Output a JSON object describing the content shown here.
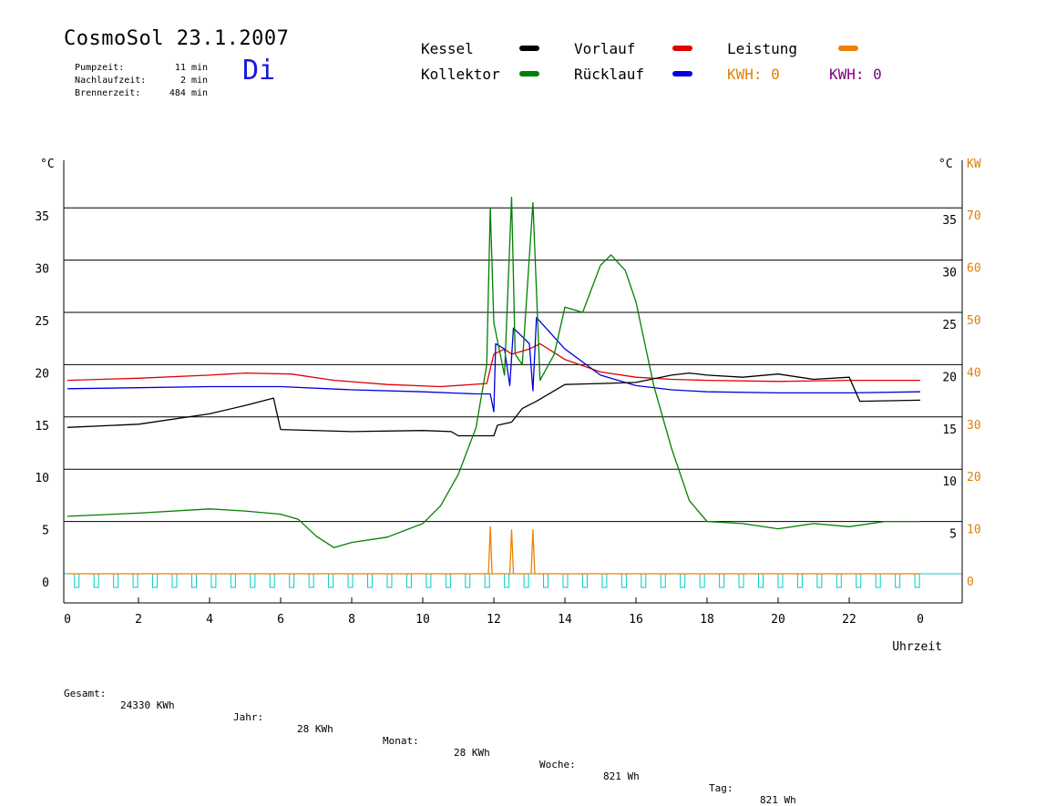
{
  "header": {
    "title": "CosmoSol 23.1.2007",
    "day": "Di",
    "info": [
      {
        "label": "Pumpzeit:",
        "value": "11 min"
      },
      {
        "label": "Nachlaufzeit:",
        "value": "2 min"
      },
      {
        "label": "Brennerzeit:",
        "value": "484 min"
      }
    ]
  },
  "legend": {
    "items": [
      {
        "label": "Kessel",
        "color": "#000000"
      },
      {
        "label": "Vorlauf",
        "color": "#e00000"
      },
      {
        "label": "Leistung",
        "color": "#f08000"
      },
      {
        "label": "Kollektor",
        "color": "#008000"
      },
      {
        "label": "Rücklauf",
        "color": "#0000e0"
      }
    ],
    "kwh": [
      {
        "text": "KWH: 0",
        "color": "#e08000"
      },
      {
        "text": "KWH: 0",
        "color": "#800080"
      }
    ]
  },
  "footer": [
    {
      "label": "Gesamt:",
      "value": "24330 KWh"
    },
    {
      "label": "Jahr:",
      "value": "28 KWh"
    },
    {
      "label": "Monat:",
      "value": "28 KWh"
    },
    {
      "label": "Woche:",
      "value": "821 Wh"
    },
    {
      "label": "Tag:",
      "value": "821 Wh"
    }
  ],
  "chart_data": {
    "type": "line",
    "xlabel": "Uhrzeit",
    "x_ticks": [
      "0",
      "2",
      "4",
      "6",
      "8",
      "10",
      "12",
      "14",
      "16",
      "18",
      "20",
      "22",
      "0"
    ],
    "xlim": [
      0,
      24
    ],
    "ylabel_left": "°C",
    "ylabel_right_units": [
      "°C",
      "KW"
    ],
    "y_ticks_left": [
      0,
      5,
      10,
      15,
      20,
      25,
      30,
      35
    ],
    "y_ticks_right_c": [
      5,
      10,
      15,
      20,
      25,
      30,
      35
    ],
    "y_ticks_right_kw": [
      0,
      10,
      20,
      30,
      40,
      50,
      60,
      70
    ],
    "ylim": [
      -3,
      40
    ],
    "grid": true,
    "series": [
      {
        "name": "Vorlauf",
        "color": "#e00000",
        "points": [
          [
            0,
            18.5
          ],
          [
            2,
            18.7
          ],
          [
            4,
            19.0
          ],
          [
            5,
            19.2
          ],
          [
            6.3,
            19.1
          ],
          [
            7.5,
            18.5
          ],
          [
            9,
            18.1
          ],
          [
            10.5,
            17.9
          ],
          [
            11.8,
            18.2
          ],
          [
            12.0,
            21.0
          ],
          [
            12.3,
            21.5
          ],
          [
            12.5,
            21.0
          ],
          [
            13.0,
            21.5
          ],
          [
            13.3,
            22.0
          ],
          [
            14,
            20.5
          ],
          [
            15,
            19.3
          ],
          [
            16,
            18.8
          ],
          [
            17,
            18.6
          ],
          [
            18,
            18.5
          ],
          [
            20,
            18.4
          ],
          [
            22,
            18.5
          ],
          [
            24,
            18.5
          ]
        ]
      },
      {
        "name": "Rücklauf",
        "color": "#0000e0",
        "points": [
          [
            0,
            17.7
          ],
          [
            2,
            17.8
          ],
          [
            4,
            17.9
          ],
          [
            6,
            17.9
          ],
          [
            8,
            17.6
          ],
          [
            10,
            17.4
          ],
          [
            11.5,
            17.2
          ],
          [
            11.9,
            17.2
          ],
          [
            12.0,
            15.5
          ],
          [
            12.05,
            22.0
          ],
          [
            12.3,
            21.5
          ],
          [
            12.45,
            18.0
          ],
          [
            12.55,
            23.5
          ],
          [
            13.0,
            22.0
          ],
          [
            13.1,
            17.5
          ],
          [
            13.2,
            24.5
          ],
          [
            14,
            21.5
          ],
          [
            15,
            19.0
          ],
          [
            16,
            18.0
          ],
          [
            17,
            17.6
          ],
          [
            18,
            17.4
          ],
          [
            20,
            17.3
          ],
          [
            22,
            17.3
          ],
          [
            24,
            17.4
          ]
        ]
      },
      {
        "name": "Kessel",
        "color": "#000000",
        "points": [
          [
            0,
            14.0
          ],
          [
            2,
            14.3
          ],
          [
            4,
            15.3
          ],
          [
            5,
            16.1
          ],
          [
            5.8,
            16.8
          ],
          [
            6.0,
            13.8
          ],
          [
            8,
            13.6
          ],
          [
            10,
            13.7
          ],
          [
            10.8,
            13.6
          ],
          [
            11.0,
            13.2
          ],
          [
            12.0,
            13.2
          ],
          [
            12.1,
            14.2
          ],
          [
            12.5,
            14.5
          ],
          [
            12.8,
            15.8
          ],
          [
            13.2,
            16.5
          ],
          [
            14,
            18.1
          ],
          [
            15,
            18.2
          ],
          [
            16,
            18.3
          ],
          [
            17,
            19.0
          ],
          [
            17.5,
            19.2
          ],
          [
            18,
            19.0
          ],
          [
            19,
            18.8
          ],
          [
            20,
            19.1
          ],
          [
            21,
            18.6
          ],
          [
            22,
            18.8
          ],
          [
            22.3,
            16.5
          ],
          [
            24,
            16.6
          ]
        ]
      },
      {
        "name": "Kollektor",
        "color": "#008000",
        "points": [
          [
            0,
            5.5
          ],
          [
            2,
            5.8
          ],
          [
            4,
            6.2
          ],
          [
            5,
            6.0
          ],
          [
            6,
            5.7
          ],
          [
            6.5,
            5.2
          ],
          [
            7,
            3.6
          ],
          [
            7.5,
            2.5
          ],
          [
            8,
            3.0
          ],
          [
            9,
            3.5
          ],
          [
            10,
            4.8
          ],
          [
            10.5,
            6.5
          ],
          [
            11,
            9.5
          ],
          [
            11.5,
            14.0
          ],
          [
            11.8,
            20.0
          ],
          [
            11.9,
            35.0
          ],
          [
            12.0,
            24.0
          ],
          [
            12.3,
            19.0
          ],
          [
            12.5,
            36.0
          ],
          [
            12.6,
            21.0
          ],
          [
            12.8,
            20.0
          ],
          [
            13.1,
            35.5
          ],
          [
            13.3,
            18.5
          ],
          [
            13.7,
            21.0
          ],
          [
            14,
            25.5
          ],
          [
            14.5,
            25.0
          ],
          [
            15,
            29.5
          ],
          [
            15.3,
            30.5
          ],
          [
            15.7,
            29.0
          ],
          [
            16,
            26.0
          ],
          [
            16.5,
            18.0
          ],
          [
            17,
            12.0
          ],
          [
            17.5,
            7.0
          ],
          [
            18,
            5.0
          ],
          [
            19,
            4.8
          ],
          [
            20,
            4.3
          ],
          [
            21,
            4.8
          ],
          [
            22,
            4.5
          ],
          [
            23,
            5.0
          ],
          [
            24,
            5.0
          ]
        ]
      },
      {
        "name": "Leistung",
        "color": "#f08000",
        "points": [
          [
            0,
            0
          ],
          [
            11.85,
            0
          ],
          [
            11.9,
            4.5
          ],
          [
            11.95,
            0
          ],
          [
            12.45,
            0
          ],
          [
            12.5,
            4.2
          ],
          [
            12.55,
            0
          ],
          [
            13.05,
            0
          ],
          [
            13.1,
            4.2
          ],
          [
            13.15,
            0
          ],
          [
            24,
            0
          ]
        ]
      }
    ]
  }
}
